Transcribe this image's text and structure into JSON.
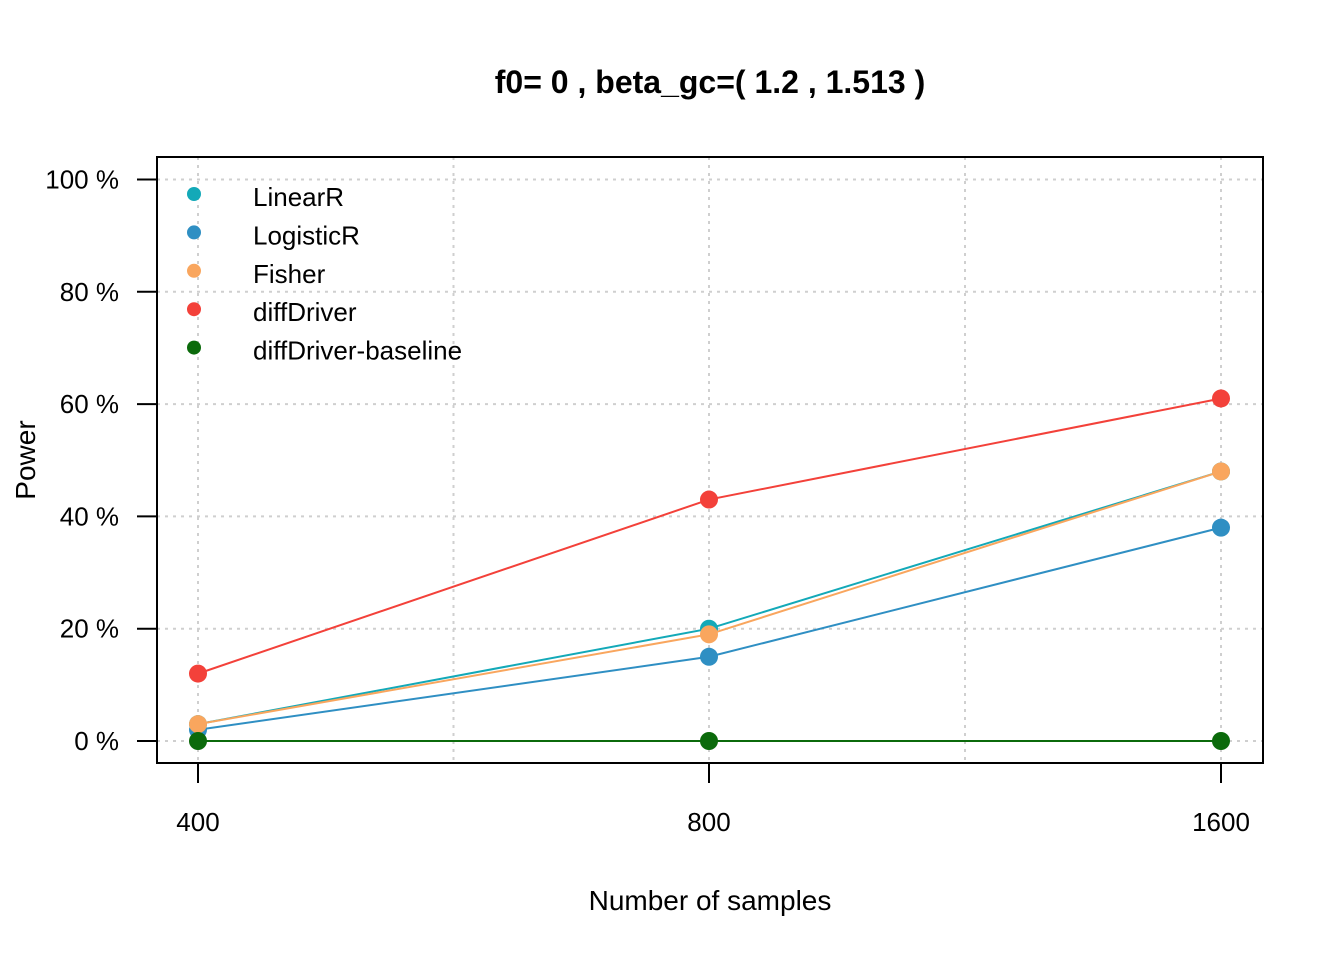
{
  "chart_data": {
    "type": "line",
    "title": "f0= 0 , beta_gc=( 1.2 , 1.513 )",
    "xlabel": "Number of samples",
    "ylabel": "Power",
    "x": [
      400,
      800,
      1600
    ],
    "x_tick_labels": [
      "400",
      "800",
      "1600"
    ],
    "y_ticks": [
      0,
      20,
      40,
      60,
      80,
      100
    ],
    "y_tick_labels": [
      "0 %",
      "20 %",
      "40 %",
      "60 %",
      "80 %",
      "100 %"
    ],
    "ylim": [
      -4,
      104
    ],
    "grid": true,
    "legend_position": "top-left",
    "series": [
      {
        "name": "LinearR",
        "color": "#13A9B8",
        "values": [
          3,
          20,
          48
        ]
      },
      {
        "name": "LogisticR",
        "color": "#2F8FC3",
        "values": [
          2,
          15,
          38
        ]
      },
      {
        "name": "Fisher",
        "color": "#F9A65E",
        "values": [
          3,
          19,
          48
        ]
      },
      {
        "name": "diffDriver",
        "color": "#F3413A",
        "values": [
          12,
          43,
          61
        ]
      },
      {
        "name": "diffDriver-baseline",
        "color": "#0B6A0B",
        "values": [
          0,
          0,
          0
        ]
      }
    ]
  }
}
